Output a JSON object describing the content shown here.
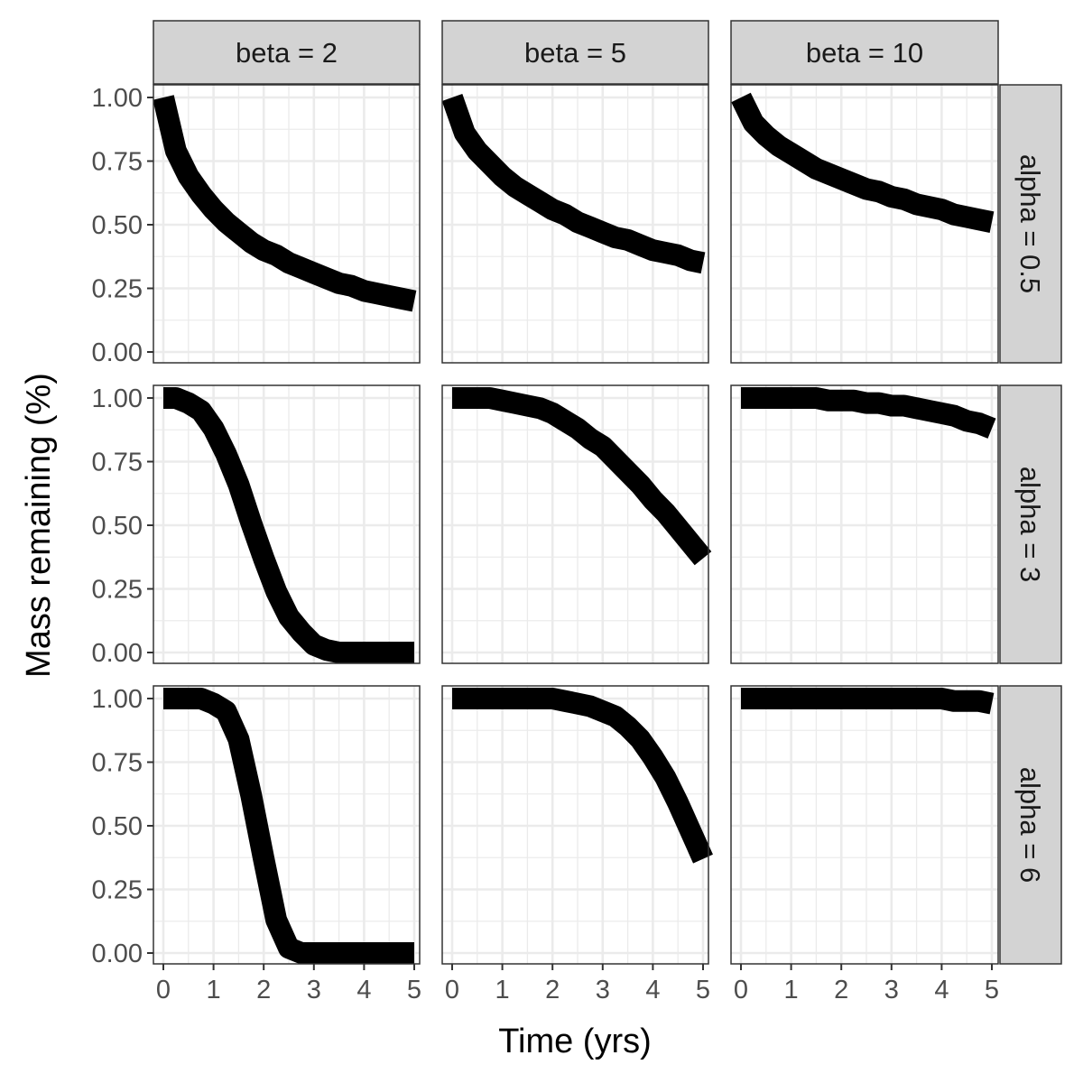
{
  "chart_data": {
    "type": "line",
    "layout": "facet-grid",
    "xlabel": "Time (yrs)",
    "ylabel": "Mass remaining (%)",
    "xlim": [
      0,
      5
    ],
    "ylim": [
      0,
      1
    ],
    "x_ticks": [
      "0",
      "1",
      "2",
      "3",
      "4",
      "5"
    ],
    "y_ticks": [
      "0.00",
      "0.25",
      "0.50",
      "0.75",
      "1.00"
    ],
    "grid": true,
    "column_facets": [
      "beta = 2",
      "beta = 5",
      "beta = 10"
    ],
    "row_facets": [
      "alpha = 0.5",
      "alpha = 3",
      "alpha = 6"
    ],
    "x": [
      0,
      0.25,
      0.5,
      0.75,
      1,
      1.25,
      1.5,
      1.75,
      2,
      2.25,
      2.5,
      2.75,
      3,
      3.25,
      3.5,
      3.75,
      4,
      4.25,
      4.5,
      4.75,
      5
    ],
    "panels": [
      {
        "row": 0,
        "col": 0,
        "values": [
          1.0,
          0.79,
          0.69,
          0.62,
          0.56,
          0.51,
          0.47,
          0.43,
          0.4,
          0.38,
          0.35,
          0.33,
          0.31,
          0.29,
          0.27,
          0.26,
          0.24,
          0.23,
          0.22,
          0.21,
          0.2
        ]
      },
      {
        "row": 0,
        "col": 1,
        "values": [
          1.0,
          0.86,
          0.79,
          0.74,
          0.69,
          0.65,
          0.62,
          0.59,
          0.56,
          0.54,
          0.51,
          0.49,
          0.47,
          0.45,
          0.44,
          0.42,
          0.4,
          0.39,
          0.38,
          0.36,
          0.35
        ]
      },
      {
        "row": 0,
        "col": 2,
        "values": [
          1.0,
          0.9,
          0.85,
          0.81,
          0.78,
          0.75,
          0.72,
          0.7,
          0.68,
          0.66,
          0.64,
          0.63,
          0.61,
          0.6,
          0.58,
          0.57,
          0.56,
          0.54,
          0.53,
          0.52,
          0.51
        ]
      },
      {
        "row": 1,
        "col": 0,
        "values": [
          1.0,
          1.0,
          0.98,
          0.95,
          0.88,
          0.78,
          0.66,
          0.51,
          0.37,
          0.24,
          0.14,
          0.08,
          0.03,
          0.01,
          0.0,
          0.0,
          0.0,
          0.0,
          0.0,
          0.0,
          0.0
        ]
      },
      {
        "row": 1,
        "col": 1,
        "values": [
          1.0,
          1.0,
          1.0,
          1.0,
          0.99,
          0.98,
          0.97,
          0.96,
          0.94,
          0.91,
          0.88,
          0.84,
          0.81,
          0.76,
          0.71,
          0.66,
          0.6,
          0.55,
          0.49,
          0.43,
          0.37
        ]
      },
      {
        "row": 1,
        "col": 2,
        "values": [
          1.0,
          1.0,
          1.0,
          1.0,
          1.0,
          1.0,
          1.0,
          0.99,
          0.99,
          0.99,
          0.98,
          0.98,
          0.97,
          0.97,
          0.96,
          0.95,
          0.94,
          0.93,
          0.91,
          0.9,
          0.88
        ]
      },
      {
        "row": 2,
        "col": 0,
        "values": [
          1.0,
          1.0,
          1.0,
          1.0,
          0.98,
          0.95,
          0.84,
          0.62,
          0.37,
          0.13,
          0.02,
          0.0,
          0.0,
          0.0,
          0.0,
          0.0,
          0.0,
          0.0,
          0.0,
          0.0,
          0.0
        ]
      },
      {
        "row": 2,
        "col": 1,
        "values": [
          1.0,
          1.0,
          1.0,
          1.0,
          1.0,
          1.0,
          1.0,
          1.0,
          1.0,
          0.99,
          0.98,
          0.97,
          0.95,
          0.93,
          0.89,
          0.84,
          0.77,
          0.69,
          0.59,
          0.48,
          0.37
        ]
      },
      {
        "row": 2,
        "col": 2,
        "values": [
          1.0,
          1.0,
          1.0,
          1.0,
          1.0,
          1.0,
          1.0,
          1.0,
          1.0,
          1.0,
          1.0,
          1.0,
          1.0,
          1.0,
          1.0,
          1.0,
          1.0,
          0.99,
          0.99,
          0.99,
          0.98
        ]
      }
    ]
  }
}
